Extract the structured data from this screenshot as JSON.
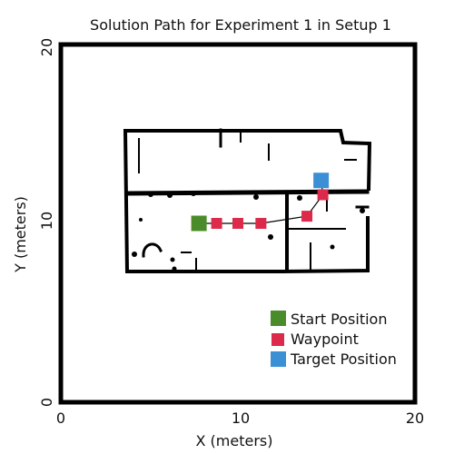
{
  "chart_data": {
    "type": "scatter",
    "title": "Solution Path for Experiment 1 in Setup 1",
    "xlabel": "X (meters)",
    "ylabel": "Y (meters)",
    "xlim": [
      0,
      20
    ],
    "ylim": [
      0,
      20
    ],
    "xticks": [
      "0",
      "10",
      "20"
    ],
    "yticks": [
      "0",
      "10",
      "20"
    ],
    "grid": false,
    "legend_position": "bottom-right",
    "path": [
      {
        "x": 7.8,
        "y": 10.0
      },
      {
        "x": 8.8,
        "y": 10.0
      },
      {
        "x": 10.0,
        "y": 10.0
      },
      {
        "x": 11.3,
        "y": 10.0
      },
      {
        "x": 13.9,
        "y": 10.4
      },
      {
        "x": 14.8,
        "y": 11.6
      },
      {
        "x": 14.7,
        "y": 12.4
      }
    ],
    "series": [
      {
        "name": "Start Position",
        "color": "#4a8c2a",
        "points": [
          {
            "x": 7.8,
            "y": 10.0
          }
        ]
      },
      {
        "name": "Waypoint",
        "color": "#dc2a4a",
        "points": [
          {
            "x": 8.8,
            "y": 10.0
          },
          {
            "x": 10.0,
            "y": 10.0
          },
          {
            "x": 11.3,
            "y": 10.0
          },
          {
            "x": 13.9,
            "y": 10.4
          },
          {
            "x": 14.8,
            "y": 11.6
          }
        ]
      },
      {
        "name": "Target Position",
        "color": "#3b8fd4",
        "points": [
          {
            "x": 14.7,
            "y": 12.4
          }
        ]
      }
    ]
  }
}
